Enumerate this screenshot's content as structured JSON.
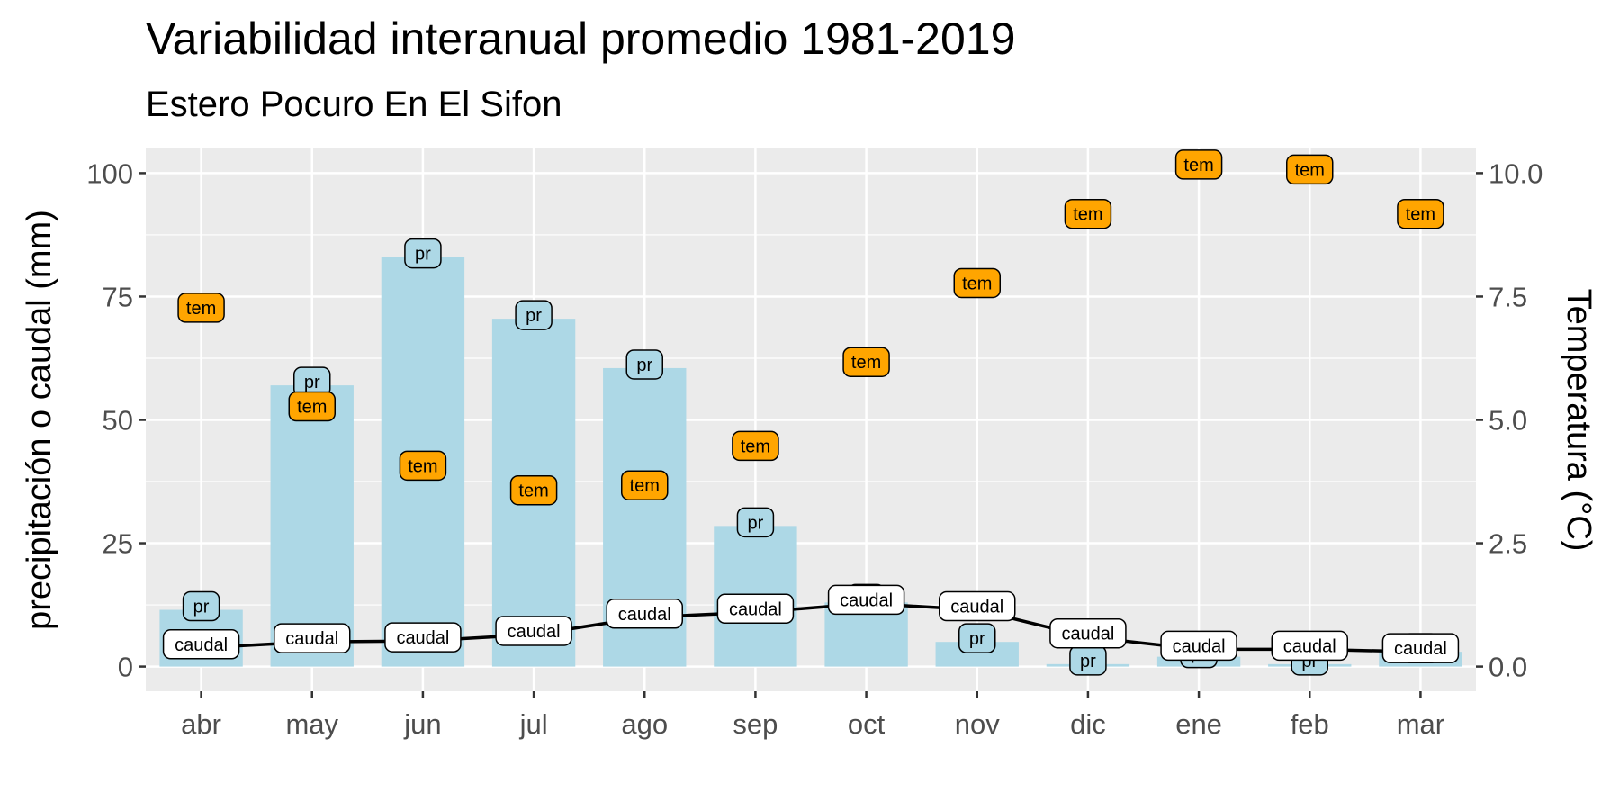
{
  "chart_data": {
    "type": "bar",
    "title": "Variabilidad interanual promedio 1981-2019",
    "subtitle": "Estero Pocuro En El Sifon",
    "ylabel": "precipitación o caudal (mm)",
    "y2label": "Temperatura (°C)",
    "categories": [
      "abr",
      "may",
      "jun",
      "jul",
      "ago",
      "sep",
      "oct",
      "nov",
      "dic",
      "ene",
      "feb",
      "mar"
    ],
    "ylim": [
      -5,
      105
    ],
    "y2lim": [
      -0.5,
      10.5
    ],
    "yticks": [
      0,
      25,
      50,
      75,
      100
    ],
    "y2ticks": [
      "0.0",
      "2.5",
      "5.0",
      "7.5",
      "10.0"
    ],
    "grid": true,
    "series": [
      {
        "name": "pr",
        "kind": "bar",
        "color": "#add8e6",
        "values": [
          11.5,
          57,
          83,
          70.5,
          60.5,
          28.5,
          13,
          5,
          0.5,
          2,
          0.5,
          3
        ]
      },
      {
        "name": "caudal",
        "kind": "line",
        "color": "#000000",
        "values": [
          3.8,
          5,
          5.2,
          6.5,
          10,
          11,
          12.8,
          11.5,
          6,
          3.5,
          3.5,
          3
        ]
      },
      {
        "name": "tem",
        "kind": "point",
        "color": "#ffa500",
        "values": [
          7.2,
          5.2,
          4,
          3.5,
          3.6,
          4.4,
          6.1,
          7.7,
          9.1,
          10.1,
          10,
          9.1
        ]
      }
    ]
  }
}
